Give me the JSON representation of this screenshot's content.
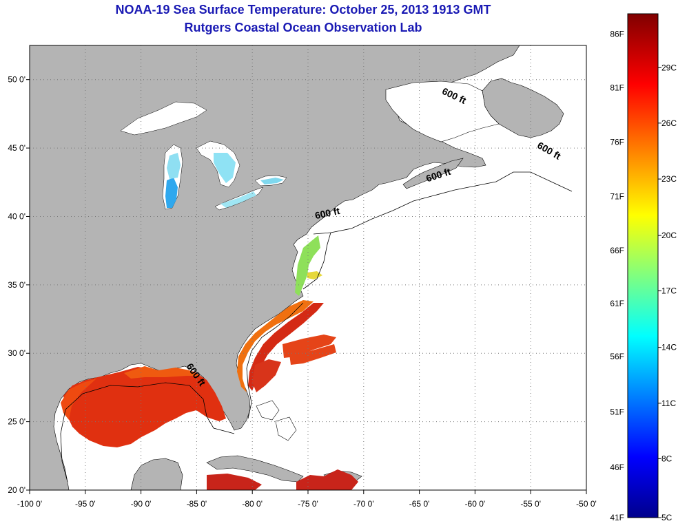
{
  "title_line1": "NOAA-19 Sea Surface Temperature:  October 25, 2013 1913 GMT",
  "title_line2": "Rutgers Coastal Ocean Observation Lab",
  "map": {
    "lon_range": [
      -100,
      -50
    ],
    "lat_range": [
      20,
      52.5
    ],
    "lon_ticks": [
      {
        "lon": -100,
        "label": "-100 0'"
      },
      {
        "lon": -95,
        "label": "-95 0'"
      },
      {
        "lon": -90,
        "label": "-90 0'"
      },
      {
        "lon": -85,
        "label": "-85 0'"
      },
      {
        "lon": -80,
        "label": "-80 0'"
      },
      {
        "lon": -75,
        "label": "-75 0'"
      },
      {
        "lon": -70,
        "label": "-70 0'"
      },
      {
        "lon": -65,
        "label": "-65 0'"
      },
      {
        "lon": -60,
        "label": "-60 0'"
      },
      {
        "lon": -55,
        "label": "-55 0'"
      },
      {
        "lon": -50,
        "label": "-50 0'"
      }
    ],
    "lat_ticks": [
      {
        "lat": 20,
        "label": "20 0'"
      },
      {
        "lat": 25,
        "label": "25 0'"
      },
      {
        "lat": 30,
        "label": "30 0'"
      },
      {
        "lat": 35,
        "label": "35 0'"
      },
      {
        "lat": 40,
        "label": "40 0'"
      },
      {
        "lat": 45,
        "label": "45 0'"
      },
      {
        "lat": 50,
        "label": "50 0'"
      }
    ],
    "contour_labels": [
      {
        "text": "600 ft",
        "lon": -62.0,
        "lat": 48.6,
        "rot": 25
      },
      {
        "text": "600 ft",
        "lon": -53.5,
        "lat": 44.6,
        "rot": 30
      },
      {
        "text": "600 ft",
        "lon": -63.2,
        "lat": 42.8,
        "rot": -18
      },
      {
        "text": "600 ft",
        "lon": -73.2,
        "lat": 40.0,
        "rot": -12
      },
      {
        "text": "600 ft",
        "lon": -85.3,
        "lat": 28.3,
        "rot": 55
      }
    ],
    "colors": {
      "land": "#b4b4b4",
      "ocean_nodata": "#ffffff",
      "gulf_warm": "#e03010",
      "gulf_edge": "#ef4a10",
      "gulf_stream": "#d42a14",
      "se_coast": "#f07010",
      "mid_atlantic_green": "#8ee05a",
      "lake_cold": "#7fdcf0",
      "lake_michigan": "#2fa8ee",
      "title": "#1a1ab4"
    }
  },
  "colorbar": {
    "f_labels": [
      {
        "frac": 0.0,
        "label": "41F"
      },
      {
        "frac": 0.1,
        "label": "46F"
      },
      {
        "frac": 0.21,
        "label": "51F"
      },
      {
        "frac": 0.32,
        "label": "56F"
      },
      {
        "frac": 0.425,
        "label": "61F"
      },
      {
        "frac": 0.53,
        "label": "66F"
      },
      {
        "frac": 0.637,
        "label": "71F"
      },
      {
        "frac": 0.745,
        "label": "76F"
      },
      {
        "frac": 0.853,
        "label": "81F"
      },
      {
        "frac": 0.96,
        "label": "86F"
      }
    ],
    "c_labels": [
      {
        "frac": 0.0,
        "label": "5C"
      },
      {
        "frac": 0.117,
        "label": "8C"
      },
      {
        "frac": 0.227,
        "label": "11C"
      },
      {
        "frac": 0.338,
        "label": "14C"
      },
      {
        "frac": 0.45,
        "label": "17C"
      },
      {
        "frac": 0.56,
        "label": "20C"
      },
      {
        "frac": 0.672,
        "label": "23C"
      },
      {
        "frac": 0.783,
        "label": "26C"
      },
      {
        "frac": 0.893,
        "label": "29C"
      }
    ]
  }
}
